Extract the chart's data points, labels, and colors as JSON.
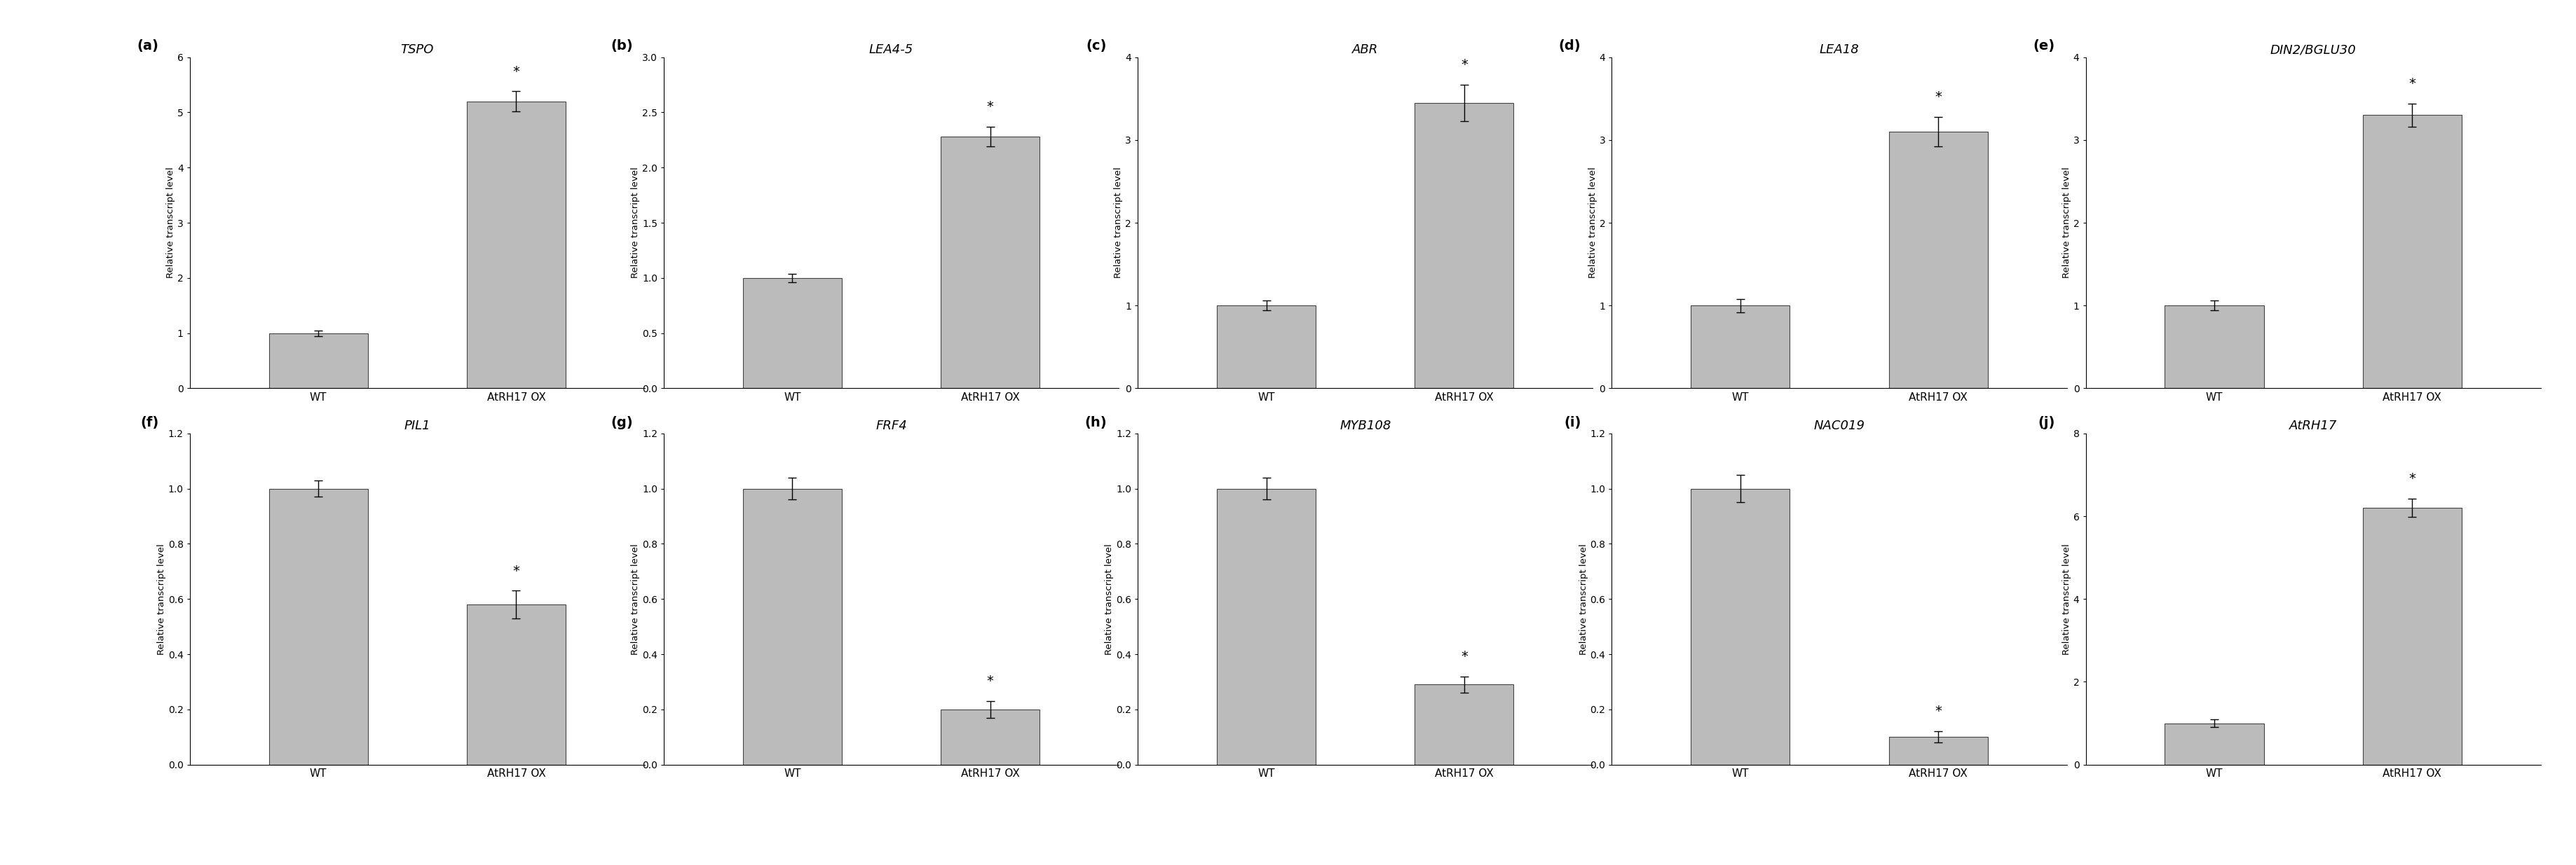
{
  "panels": [
    {
      "label": "(a)",
      "title": "TSPO",
      "wt_val": 1.0,
      "ox_val": 5.2,
      "wt_err": 0.05,
      "ox_err": 0.18,
      "ylim": [
        0,
        6
      ],
      "yticks": [
        0,
        1,
        2,
        3,
        4,
        5,
        6
      ],
      "row": 0,
      "col": 0
    },
    {
      "label": "(b)",
      "title": "LEA4-5",
      "wt_val": 1.0,
      "ox_val": 2.28,
      "wt_err": 0.04,
      "ox_err": 0.09,
      "ylim": [
        0,
        3
      ],
      "yticks": [
        0,
        0.5,
        1.0,
        1.5,
        2.0,
        2.5,
        3.0
      ],
      "row": 0,
      "col": 1
    },
    {
      "label": "(c)",
      "title": "ABR",
      "wt_val": 1.0,
      "ox_val": 3.45,
      "wt_err": 0.06,
      "ox_err": 0.22,
      "ylim": [
        0,
        4
      ],
      "yticks": [
        0,
        1,
        2,
        3,
        4
      ],
      "row": 0,
      "col": 2
    },
    {
      "label": "(d)",
      "title": "LEA18",
      "wt_val": 1.0,
      "ox_val": 3.1,
      "wt_err": 0.08,
      "ox_err": 0.18,
      "ylim": [
        0,
        4
      ],
      "yticks": [
        0,
        1,
        2,
        3,
        4
      ],
      "row": 0,
      "col": 3
    },
    {
      "label": "(e)",
      "title": "DIN2/BGLU30",
      "wt_val": 1.0,
      "ox_val": 3.3,
      "wt_err": 0.06,
      "ox_err": 0.14,
      "ylim": [
        0,
        4
      ],
      "yticks": [
        0,
        1,
        2,
        3,
        4
      ],
      "row": 0,
      "col": 4
    },
    {
      "label": "(f)",
      "title": "PIL1",
      "wt_val": 1.0,
      "ox_val": 0.58,
      "wt_err": 0.03,
      "ox_err": 0.05,
      "ylim": [
        0,
        1.2
      ],
      "yticks": [
        0,
        0.2,
        0.4,
        0.6,
        0.8,
        1.0,
        1.2
      ],
      "row": 1,
      "col": 0
    },
    {
      "label": "(g)",
      "title": "FRF4",
      "wt_val": 1.0,
      "ox_val": 0.2,
      "wt_err": 0.04,
      "ox_err": 0.03,
      "ylim": [
        0,
        1.2
      ],
      "yticks": [
        0,
        0.2,
        0.4,
        0.6,
        0.8,
        1.0,
        1.2
      ],
      "row": 1,
      "col": 1
    },
    {
      "label": "(h)",
      "title": "MYB108",
      "wt_val": 1.0,
      "ox_val": 0.29,
      "wt_err": 0.04,
      "ox_err": 0.03,
      "ylim": [
        0,
        1.2
      ],
      "yticks": [
        0,
        0.2,
        0.4,
        0.6,
        0.8,
        1.0,
        1.2
      ],
      "row": 1,
      "col": 2
    },
    {
      "label": "(i)",
      "title": "NAC019",
      "wt_val": 1.0,
      "ox_val": 0.1,
      "wt_err": 0.05,
      "ox_err": 0.02,
      "ylim": [
        0,
        1.2
      ],
      "yticks": [
        0,
        0.2,
        0.4,
        0.6,
        0.8,
        1.0,
        1.2
      ],
      "row": 1,
      "col": 3
    },
    {
      "label": "(j)",
      "title": "AtRH17",
      "wt_val": 1.0,
      "ox_val": 6.2,
      "wt_err": 0.1,
      "ox_err": 0.22,
      "ylim": [
        0,
        8
      ],
      "yticks": [
        0,
        2,
        4,
        6,
        8
      ],
      "row": 1,
      "col": 4
    }
  ],
  "bar_color": "#bbbbbb",
  "bar_edge_color": "#444444",
  "bar_width": 0.5,
  "xlabel_fontsize": 11,
  "ylabel_fontsize": 9.5,
  "title_fontsize": 13,
  "tick_fontsize": 10,
  "label_fontsize": 14,
  "star_fontsize": 14,
  "ylabel": "Relative transcript level",
  "xtick_labels": [
    "WT",
    "AtRH17 OX"
  ],
  "background_color": "#ffffff",
  "fig_width": 36.75,
  "fig_height": 12.35
}
